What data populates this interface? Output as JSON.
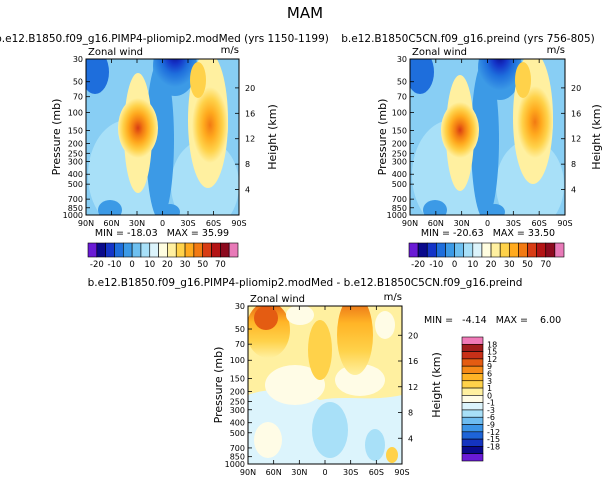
{
  "figure": {
    "title": "MAM",
    "pressure_label": "Pressure (mb)",
    "height_label": "Height (km)",
    "zonal_label": "Zonal wind",
    "units": "m/s"
  },
  "chart_data": [
    {
      "type": "heatmap",
      "title": "b.e12.B1850.f09_g16.PIMP4-pliomip2.modMed (yrs 1150-1199)",
      "variable": "Zonal wind",
      "units": "m/s",
      "xlabel": "",
      "ylabel": "Pressure (mb)",
      "ylabel_right": "Height (km)",
      "x_ticks": [
        "90N",
        "60N",
        "30N",
        "0",
        "30S",
        "60S",
        "90S"
      ],
      "y_ticks": [
        30,
        50,
        70,
        100,
        150,
        200,
        250,
        300,
        400,
        500,
        700,
        850,
        1000
      ],
      "y_ticks_right": [
        4,
        8,
        12,
        16,
        20
      ],
      "stats": "MIN = -18.03   MAX = 35.99",
      "min": -18.03,
      "max": 35.99,
      "colorbar_levels": [
        -20,
        -10,
        0,
        10,
        20,
        30,
        50,
        70
      ]
    },
    {
      "type": "heatmap",
      "title": "b.e12.B1850C5CN.f09_g16.preind (yrs 756-805)",
      "variable": "Zonal wind",
      "units": "m/s",
      "xlabel": "",
      "ylabel": "Pressure (mb)",
      "ylabel_right": "Height (km)",
      "x_ticks": [
        "90N",
        "60N",
        "30N",
        "0",
        "30S",
        "60S",
        "90S"
      ],
      "y_ticks": [
        30,
        50,
        70,
        100,
        150,
        200,
        250,
        300,
        400,
        500,
        700,
        850,
        1000
      ],
      "y_ticks_right": [
        4,
        8,
        12,
        16,
        20
      ],
      "stats": "MIN = -20.63   MAX = 33.50",
      "min": -20.63,
      "max": 33.5,
      "colorbar_levels": [
        -20,
        -10,
        0,
        10,
        20,
        30,
        50,
        70
      ]
    },
    {
      "type": "heatmap",
      "title": "b.e12.B1850.f09_g16.PIMP4-pliomip2.modMed - b.e12.B1850C5CN.f09_g16.preind",
      "variable": "Zonal wind",
      "units": "m/s",
      "xlabel": "",
      "ylabel": "Pressure (mb)",
      "ylabel_right": "Height (km)",
      "x_ticks": [
        "90N",
        "60N",
        "30N",
        "0",
        "30S",
        "60S",
        "90S"
      ],
      "y_ticks": [
        30,
        50,
        70,
        100,
        150,
        200,
        250,
        300,
        400,
        500,
        700,
        850,
        1000
      ],
      "y_ticks_right": [
        4,
        8,
        12,
        16,
        20
      ],
      "stats": "MIN =   -4.14   MAX =    6.00",
      "min": -4.14,
      "max": 6.0,
      "colorbar_levels": [
        18,
        15,
        12,
        9,
        6,
        3,
        1,
        0,
        -1,
        -3,
        -6,
        -9,
        -12,
        -15,
        -18
      ]
    }
  ],
  "colors": {
    "full_palette": [
      "#6a1bd6",
      "#0a0a8c",
      "#1434c8",
      "#1e6edc",
      "#3c9ae6",
      "#6ec0f0",
      "#a8e0f8",
      "#dcf4fc",
      "#fffde0",
      "#fff0a0",
      "#ffd24a",
      "#ffaa1e",
      "#f27a12",
      "#d83c14",
      "#b41414",
      "#8c0a1e",
      "#e87ab8"
    ],
    "diff_palette": [
      "#f07ab8",
      "#a01c1c",
      "#c83018",
      "#e45c12",
      "#f68a18",
      "#ffb426",
      "#ffd24a",
      "#fff0a0",
      "#fffce6",
      "#dcf4fc",
      "#a8e0f8",
      "#6ebcf0",
      "#3c94e6",
      "#1e64d8",
      "#1434c0",
      "#0a0a8c",
      "#6a1bd6"
    ]
  }
}
